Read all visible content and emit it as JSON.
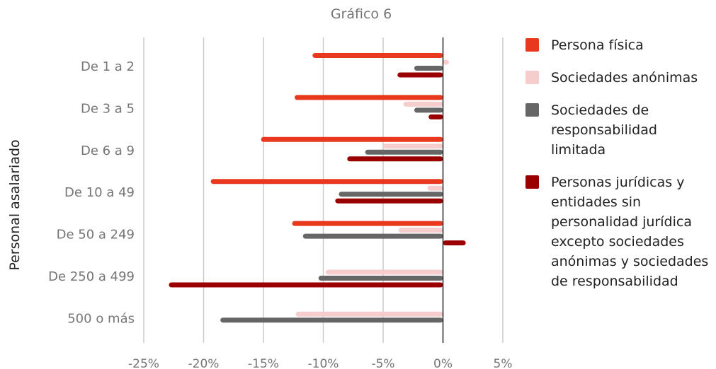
{
  "chart_data": {
    "type": "bar",
    "orientation": "horizontal",
    "title": "Gráfico 6",
    "ylabel": "Personal asalariado",
    "xlabel": "",
    "xlim": [
      -25,
      5
    ],
    "x_ticks": [
      "-25%",
      "-20%",
      "-15%",
      "-10%",
      "-5%",
      "0%",
      "5%"
    ],
    "x_tick_values": [
      -25,
      -20,
      -15,
      -10,
      -5,
      0,
      5
    ],
    "grid": true,
    "legend_position": "right",
    "categories": [
      "De 1 a 2",
      "De 3 a 5",
      "De 6 a 9",
      "De 10 a 49",
      "De 50 a 249",
      "De 250 a 499",
      "500 o más"
    ],
    "series": [
      {
        "name": "Persona física",
        "color": "#e8391f",
        "values": [
          -10.9,
          -12.4,
          -15.2,
          -19.4,
          -12.6,
          null,
          null
        ]
      },
      {
        "name": "Sociedades anónimas",
        "color": "#f6cdcd",
        "values": [
          0.5,
          -3.3,
          -5.0,
          -1.3,
          -3.7,
          -9.8,
          -12.3
        ]
      },
      {
        "name": "Sociedades de responsabilidad limitada",
        "color": "#666666",
        "values": [
          -2.4,
          -2.4,
          -6.5,
          -8.7,
          -11.7,
          -10.4,
          -18.6
        ]
      },
      {
        "name": "Personas jurídicas y entidades sin personalidad jurídica excepto sociedades anónimas y sociedades de responsabilidad",
        "color": "#9b0000",
        "values": [
          -3.8,
          -1.2,
          -8.0,
          -9.0,
          1.9,
          -22.9,
          null
        ]
      }
    ]
  }
}
